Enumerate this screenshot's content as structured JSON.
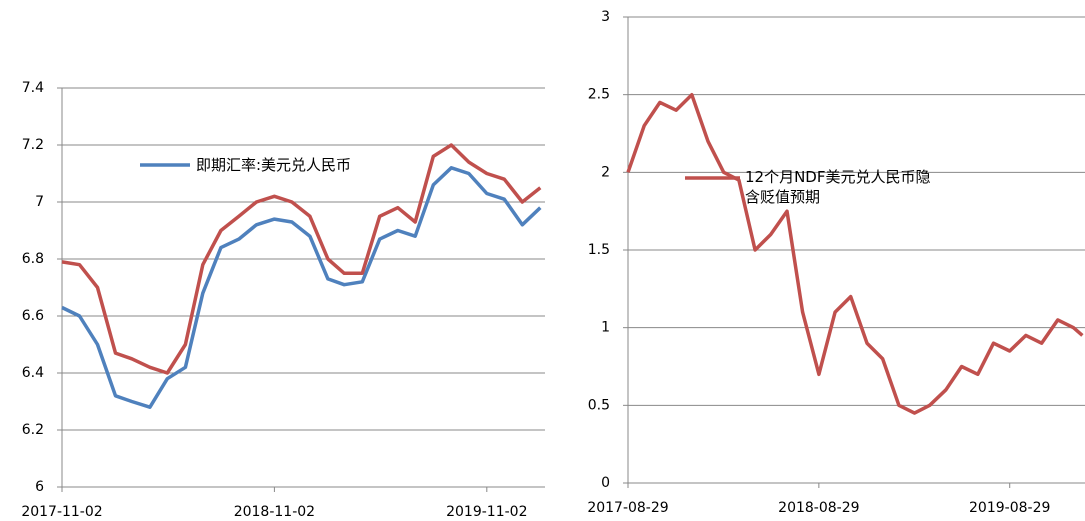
{
  "chart_data": [
    {
      "type": "line",
      "x": [
        "2017-11-02",
        "2017-12-02",
        "2018-01-02",
        "2018-02-02",
        "2018-03-02",
        "2018-04-02",
        "2018-05-02",
        "2018-06-02",
        "2018-07-02",
        "2018-08-02",
        "2018-09-02",
        "2018-10-02",
        "2018-11-02",
        "2018-12-02",
        "2019-01-02",
        "2019-02-02",
        "2019-03-02",
        "2019-04-02",
        "2019-05-02",
        "2019-06-02",
        "2019-07-02",
        "2019-08-02",
        "2019-09-02",
        "2019-10-02",
        "2019-11-02",
        "2019-12-02",
        "2020-01-02",
        "2020-02-02"
      ],
      "series": [
        {
          "name": "即期汇率:美元兑人民币",
          "color": "#4f81bd",
          "values": [
            6.63,
            6.6,
            6.5,
            6.32,
            6.3,
            6.28,
            6.38,
            6.42,
            6.68,
            6.84,
            6.87,
            6.92,
            6.94,
            6.93,
            6.88,
            6.73,
            6.71,
            6.72,
            6.87,
            6.9,
            6.88,
            7.06,
            7.12,
            7.1,
            7.03,
            7.01,
            6.92,
            6.98
          ]
        },
        {
          "color": "#c0504d",
          "values": [
            6.79,
            6.78,
            6.7,
            6.47,
            6.45,
            6.42,
            6.4,
            6.5,
            6.78,
            6.9,
            6.95,
            7.0,
            7.02,
            7.0,
            6.95,
            6.8,
            6.75,
            6.75,
            6.95,
            6.98,
            6.93,
            7.16,
            7.2,
            7.14,
            7.1,
            7.08,
            7.0,
            7.05
          ]
        }
      ],
      "xlim": [
        "2017-11-02",
        "2020-02-10"
      ],
      "xticks": [
        "2017-11-02",
        "2018-11-02",
        "2019-11-02"
      ],
      "ylim": [
        6,
        7.4
      ],
      "yticks": [
        6,
        6.2,
        6.4,
        6.6,
        6.8,
        7,
        7.2,
        7.4
      ],
      "grid": true
    },
    {
      "type": "line",
      "x": [
        "2017-08-29",
        "2017-09-29",
        "2017-10-29",
        "2017-11-29",
        "2017-12-29",
        "2018-01-29",
        "2018-02-28",
        "2018-03-29",
        "2018-04-29",
        "2018-05-29",
        "2018-06-29",
        "2018-07-29",
        "2018-08-29",
        "2018-09-29",
        "2018-10-29",
        "2018-11-29",
        "2018-12-29",
        "2019-01-29",
        "2019-02-28",
        "2019-03-29",
        "2019-04-29",
        "2019-05-29",
        "2019-06-29",
        "2019-07-29",
        "2019-08-29",
        "2019-09-29",
        "2019-10-29",
        "2019-11-29",
        "2019-12-29",
        "2020-01-15"
      ],
      "series": [
        {
          "name": "12个月NDF美元兑人民币隐含贬值预期",
          "color": "#c0504d",
          "values": [
            2.0,
            2.3,
            2.45,
            2.4,
            2.5,
            2.2,
            2.0,
            1.95,
            1.5,
            1.6,
            1.75,
            1.1,
            0.7,
            1.1,
            1.2,
            0.9,
            0.8,
            0.5,
            0.45,
            0.5,
            0.6,
            0.75,
            0.7,
            0.9,
            0.85,
            0.95,
            0.9,
            1.05,
            1.0,
            0.95
          ]
        }
      ],
      "xlim": [
        "2017-08-29",
        "2020-01-20"
      ],
      "xticks": [
        "2017-08-29",
        "2018-08-29",
        "2019-08-29"
      ],
      "ylim": [
        0,
        3
      ],
      "yticks": [
        0,
        0.5,
        1,
        1.5,
        2,
        2.5,
        3
      ],
      "grid": true
    }
  ]
}
